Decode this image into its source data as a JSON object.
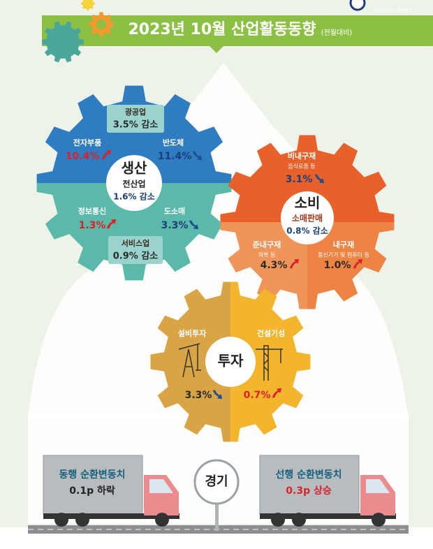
{
  "header": {
    "title": "2023년 10월 산업활동동향",
    "subtitle": "(전월대비)",
    "logo_text": "Statistics Korea"
  },
  "production": {
    "title": "생산",
    "total_label": "전산업",
    "total_value": "1.6% 감소",
    "items": [
      {
        "label": "광공업",
        "value": "3.5% 감소"
      },
      {
        "label": "전자부품",
        "value": "10.4%"
      },
      {
        "label": "반도체",
        "value": "11.4%"
      },
      {
        "label": "정보통신",
        "value": "1.3%"
      },
      {
        "label": "도소매",
        "value": "3.3%"
      },
      {
        "label": "서비스업",
        "value": "0.9% 감소"
      }
    ]
  },
  "consumption": {
    "title": "소비",
    "total_label": "소매판매",
    "total_value": "0.8% 감소",
    "items": [
      {
        "label": "비내구재",
        "note": "음식료품 등",
        "value": "3.1%"
      },
      {
        "label": "준내구재",
        "note": "의복 등",
        "value": "4.3%"
      },
      {
        "label": "내구재",
        "note": "통신기기 및 컴퓨터 등",
        "value": "1.0%"
      }
    ]
  },
  "investment": {
    "title": "투자",
    "items": [
      {
        "label": "설비투자",
        "value": "3.3%"
      },
      {
        "label": "건설기성",
        "value": "0.7%"
      }
    ]
  },
  "economy": {
    "title": "경기",
    "coincident": {
      "label": "동행 순환변동치",
      "value": "0.1p 하락"
    },
    "leading": {
      "label": "선행 순환변동치",
      "value": "0.3p 상승"
    }
  }
}
